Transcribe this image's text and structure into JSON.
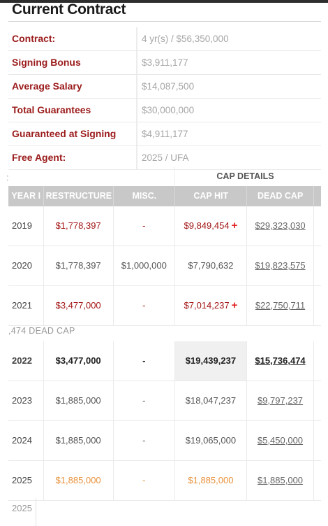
{
  "section_title": "Current Contract",
  "contract_rows": [
    {
      "label": "Contract:",
      "value": "4 yr(s) / $56,350,000"
    },
    {
      "label": "Signing Bonus",
      "value": "$3,911,177"
    },
    {
      "label": "Average Salary",
      "value": "$14,087,500"
    },
    {
      "label": "Total Guarantees",
      "value": "$30,000,000"
    },
    {
      "label": "Guaranteed at Signing",
      "value": "$4,911,177"
    },
    {
      "label": "Free Agent:",
      "value": "2025 / UFA"
    }
  ],
  "partial_mark": ":",
  "cap_details_label": "CAP DETAILS",
  "columns": {
    "year": "YEAR I",
    "restructure": "RESTRUCTURE",
    "misc": "MISC.",
    "cap_hit": "CAP HIT",
    "dead_cap": "DEAD CAP"
  },
  "rows_before": [
    {
      "year": "2019",
      "restructure": "$1,778,397",
      "misc": "-",
      "cap_hit": "$9,849,454",
      "dead_cap": "$29,323,030"
    },
    {
      "year": "2020",
      "restructure": "$1,778,397",
      "misc": "$1,000,000",
      "cap_hit": "$7,790,632",
      "dead_cap": "$19,823,575"
    },
    {
      "year": "2021",
      "restructure": "$3,477,000",
      "misc": "-",
      "cap_hit": "$7,014,237",
      "dead_cap": "$22,750,711"
    }
  ],
  "dead_cap_note": ",474 DEAD CAP",
  "rows_after": [
    {
      "year": "2022",
      "restructure": "$3,477,000",
      "misc": "-",
      "cap_hit": "$19,439,237",
      "dead_cap": "$15,736,474"
    },
    {
      "year": "2023",
      "restructure": "$1,885,000",
      "misc": "-",
      "cap_hit": "$18,047,237",
      "dead_cap": "$9,797,237"
    },
    {
      "year": "2024",
      "restructure": "$1,885,000",
      "misc": "-",
      "cap_hit": "$19,065,000",
      "dead_cap": "$5,450,000"
    },
    {
      "year": "2025",
      "restructure": "$1,885,000",
      "misc": "-",
      "cap_hit": "$1,885,000",
      "dead_cap": "$1,885,000"
    }
  ],
  "tail_year": "2025",
  "plus_icon": "+",
  "colors": {
    "label_red": "#9b1b1b",
    "value_red": "#a31515",
    "orange": "#e8913a",
    "plus": "#e02020"
  }
}
